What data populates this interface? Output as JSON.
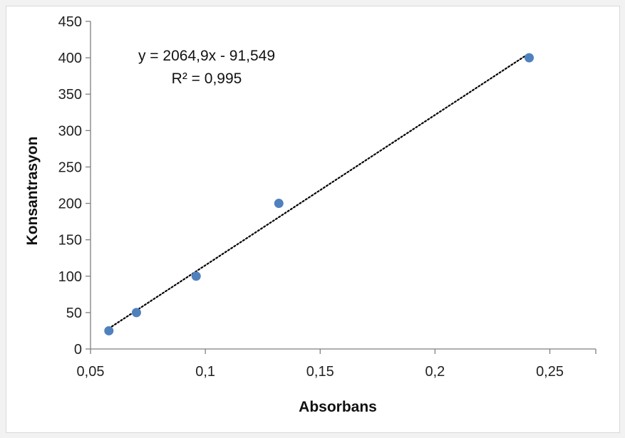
{
  "chart_data": {
    "type": "scatter",
    "xlabel": "Absorbans",
    "ylabel": "Konsantrasyon",
    "xlim": [
      0.05,
      0.27
    ],
    "ylim": [
      0,
      450
    ],
    "x_ticks": [
      "0,05",
      "0,1",
      "0,15",
      "0,2",
      "0,25"
    ],
    "x_tick_values": [
      0.05,
      0.1,
      0.15,
      0.2,
      0.25
    ],
    "y_ticks": [
      "0",
      "50",
      "100",
      "150",
      "200",
      "250",
      "300",
      "350",
      "400",
      "450"
    ],
    "y_tick_values": [
      0,
      50,
      100,
      150,
      200,
      250,
      300,
      350,
      400,
      450
    ],
    "grid": false,
    "series": [
      {
        "points": [
          {
            "x": 0.058,
            "y": 25
          },
          {
            "x": 0.07,
            "y": 50
          },
          {
            "x": 0.096,
            "y": 100
          },
          {
            "x": 0.132,
            "y": 200
          },
          {
            "x": 0.241,
            "y": 400
          }
        ],
        "color": "#4f81bd"
      }
    ],
    "trendline": {
      "style": "dotted",
      "color": "#000000",
      "slope": 2064.9,
      "intercept": -91.549,
      "x_range": [
        0.058,
        0.241
      ],
      "equation_label": "y = 2064,9x - 91,549",
      "r2_label": "R² = 0,995"
    }
  }
}
